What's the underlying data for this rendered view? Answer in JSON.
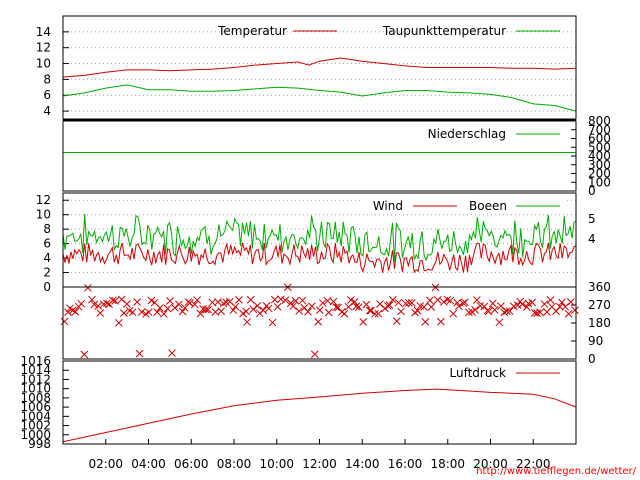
{
  "chart_data": [
    {
      "type": "line",
      "panel": "temperature",
      "ylim": [
        3,
        16
      ],
      "yticks": [
        4,
        6,
        8,
        10,
        12,
        14
      ],
      "grid": true,
      "legend_placement": "top-right",
      "series": [
        {
          "name": "Temperatur",
          "color": "#cc0000",
          "x": [
            0,
            1,
            2,
            3,
            4,
            5,
            6,
            7,
            8,
            9,
            10,
            11,
            11.5,
            12,
            13,
            14,
            15,
            16,
            17,
            18,
            19,
            20,
            21,
            22,
            23,
            24
          ],
          "y": [
            8.3,
            8.5,
            8.9,
            9.2,
            9.2,
            9.1,
            9.2,
            9.3,
            9.5,
            9.8,
            10.0,
            10.2,
            9.8,
            10.3,
            10.7,
            10.3,
            10.0,
            9.7,
            9.5,
            9.5,
            9.5,
            9.5,
            9.4,
            9.4,
            9.3,
            9.4
          ]
        },
        {
          "name": "Taupunkttemperatur",
          "color": "#00aa00",
          "x": [
            0,
            1,
            2,
            3,
            4,
            5,
            6,
            7,
            8,
            9,
            10,
            11,
            12,
            13,
            14,
            15,
            16,
            17,
            18,
            19,
            20,
            21,
            22,
            23,
            24
          ],
          "y": [
            5.9,
            6.3,
            6.9,
            7.3,
            6.7,
            6.7,
            6.5,
            6.5,
            6.6,
            6.8,
            7.0,
            6.9,
            6.6,
            6.4,
            5.9,
            6.3,
            6.6,
            6.6,
            6.4,
            6.3,
            6.1,
            5.7,
            4.9,
            4.7,
            4.0
          ]
        }
      ]
    },
    {
      "type": "line",
      "panel": "precipitation",
      "ylim": [
        0,
        800
      ],
      "yticks_right": [
        0,
        100,
        200,
        300,
        400,
        500,
        600,
        700,
        800
      ],
      "series": [
        {
          "name": "Niederschlag",
          "color": "#00aa00",
          "x": [
            0,
            24
          ],
          "y": [
            440,
            440
          ]
        }
      ]
    },
    {
      "type": "line",
      "panel": "wind",
      "ylim": [
        0,
        13
      ],
      "yticks_left": [
        0,
        2,
        4,
        6,
        8,
        10,
        12
      ],
      "yticks_right": [
        "4",
        "5"
      ],
      "grid": true,
      "series": [
        {
          "name": "Wind",
          "color": "#cc0000"
        },
        {
          "name": "Boeen",
          "color": "#00aa00"
        }
      ]
    },
    {
      "type": "scatter",
      "panel": "wind-direction",
      "ylim": [
        0,
        360
      ],
      "yticks_right": [
        0,
        90,
        180,
        270,
        360
      ],
      "marker": "x",
      "color": "#cc0000",
      "typical_direction_deg": [
        225,
        300
      ]
    },
    {
      "type": "line",
      "panel": "pressure",
      "ylim": [
        998,
        1016
      ],
      "yticks_left": [
        998,
        1000,
        1002,
        1004,
        1006,
        1008,
        1010,
        1012,
        1014,
        1016
      ],
      "series": [
        {
          "name": "Luftdruck",
          "color": "#cc0000",
          "x": [
            0,
            2,
            4,
            6,
            8,
            10,
            12,
            14,
            16,
            17.5,
            19,
            20,
            21,
            22,
            23,
            24
          ],
          "y": [
            998.5,
            1000.5,
            1002.5,
            1004.5,
            1006.3,
            1007.5,
            1008.2,
            1009.0,
            1009.6,
            1009.9,
            1009.5,
            1009.2,
            1009.0,
            1008.8,
            1007.8,
            1006.0
          ]
        }
      ]
    }
  ],
  "x_tick_labels": [
    "02:00",
    "04:00",
    "06:00",
    "08:00",
    "10:00",
    "12:00",
    "14:00",
    "16:00",
    "18:00",
    "20:00",
    "22:00"
  ],
  "source_url": "http://www.tiefflegen.de/wetter/"
}
